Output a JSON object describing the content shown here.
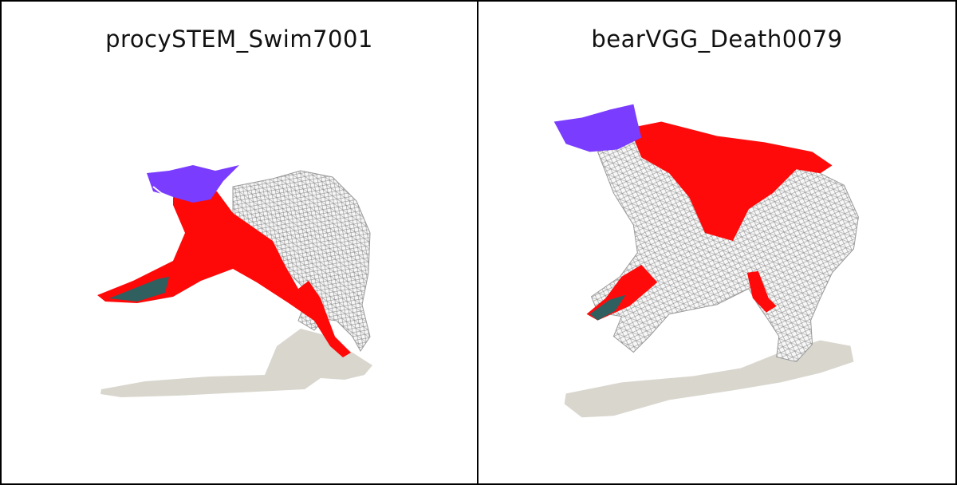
{
  "panels": [
    {
      "title": "procySTEM_Swim7001"
    },
    {
      "title": "bearVGG_Death0079"
    }
  ],
  "colors": {
    "background": "#ffffff",
    "border": "#000000",
    "mesh_red": "#ff0000",
    "mesh_blue": "#7a3cff",
    "wireframe": "#e9e9e9",
    "shadow": "#d6d3cc",
    "teal": "#2f5f5f"
  }
}
